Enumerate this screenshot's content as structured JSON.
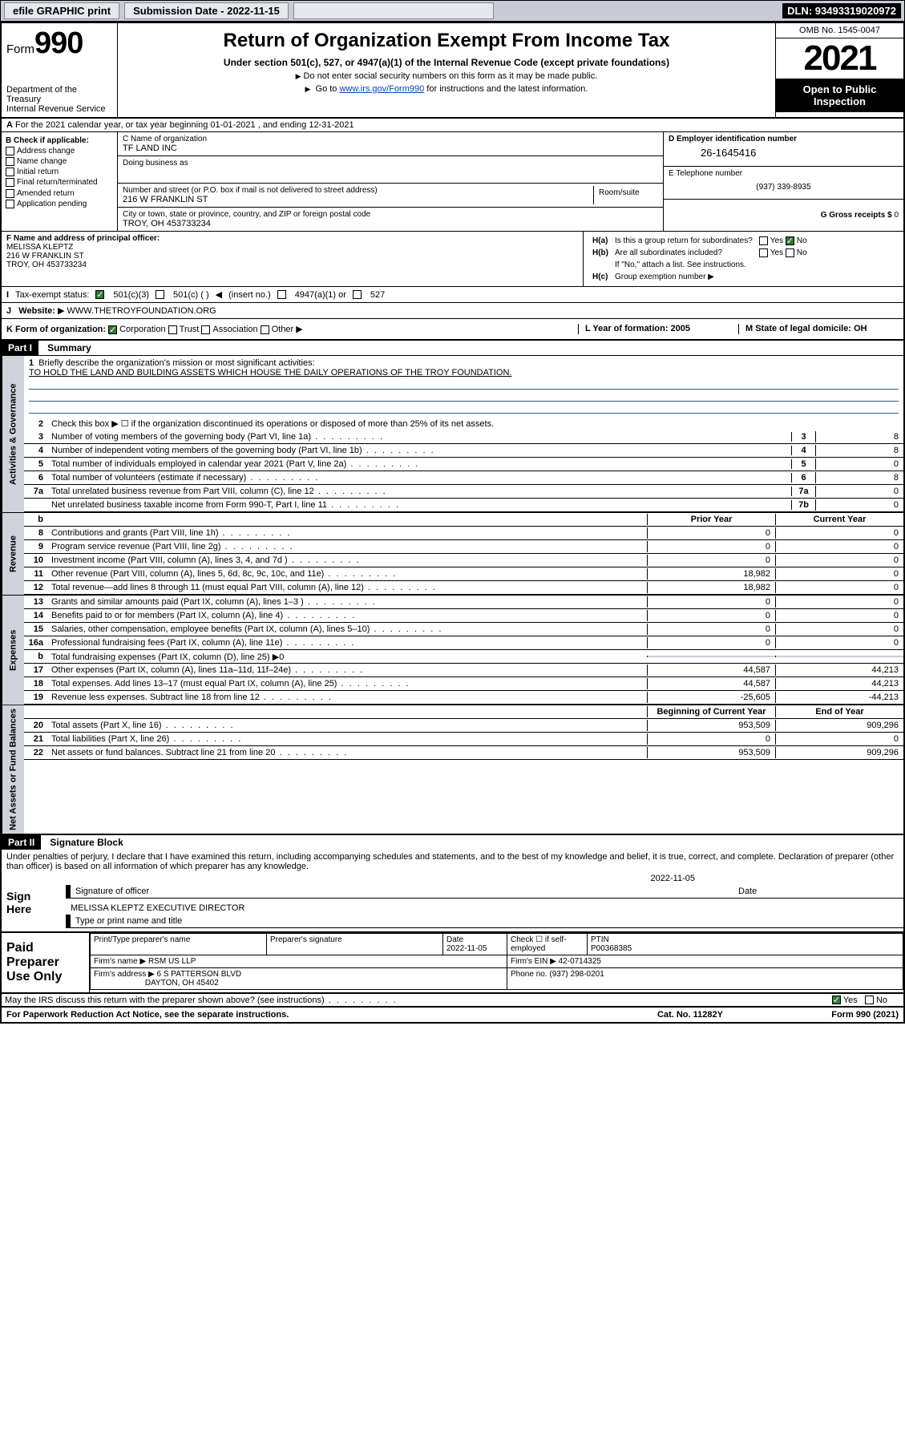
{
  "toolbar": {
    "efile": "efile GRAPHIC print",
    "subdate_lbl": "Submission Date - 2022-11-15",
    "dln": "DLN: 93493319020972"
  },
  "header": {
    "form": "Form",
    "num": "990",
    "dept": "Department of the Treasury",
    "irs": "Internal Revenue Service",
    "title": "Return of Organization Exempt From Income Tax",
    "sub": "Under section 501(c), 527, or 4947(a)(1) of the Internal Revenue Code (except private foundations)",
    "note1": "Do not enter social security numbers on this form as it may be made public.",
    "note2_pre": "Go to ",
    "note2_link": "www.irs.gov/Form990",
    "note2_post": " for instructions and the latest information.",
    "omb": "OMB No. 1545-0047",
    "year": "2021",
    "open": "Open to Public Inspection"
  },
  "A": {
    "txt": "For the 2021 calendar year, or tax year beginning 01-01-2021   , and ending 12-31-2021"
  },
  "B": {
    "hdr": "B Check if applicable:",
    "items": [
      "Address change",
      "Name change",
      "Initial return",
      "Final return/terminated",
      "Amended return",
      "Application pending"
    ]
  },
  "C": {
    "name_lbl": "C Name of organization",
    "name": "TF LAND INC",
    "dba_lbl": "Doing business as",
    "dba": "",
    "addr_lbl": "Number and street (or P.O. box if mail is not delivered to street address)",
    "addr": "216 W FRANKLIN ST",
    "room_lbl": "Room/suite",
    "city_lbl": "City or town, state or province, country, and ZIP or foreign postal code",
    "city": "TROY, OH  453733234"
  },
  "D": {
    "lbl": "D Employer identification number",
    "ein": "26-1645416",
    "tel_lbl": "E Telephone number",
    "tel": "(937) 339-8935",
    "gross_lbl": "G Gross receipts $",
    "gross": "0"
  },
  "F": {
    "lbl": "F  Name and address of principal officer:",
    "name": "MELISSA KLEPTZ",
    "addr1": "216 W FRANKLIN ST",
    "addr2": "TROY, OH  453733234"
  },
  "H": {
    "a": "Is this a group return for subordinates?",
    "b": "Are all subordinates included?",
    "bnote": "If \"No,\" attach a list. See instructions.",
    "c": "Group exemption number",
    "yes": "Yes",
    "no": "No"
  },
  "I": {
    "lbl": "Tax-exempt status:",
    "o1": "501(c)(3)",
    "o2": "501(c) (    )",
    "o2b": "(insert no.)",
    "o3": "4947(a)(1) or",
    "o4": "527"
  },
  "J": {
    "lbl": "Website:",
    "val": "WWW.THETROYFOUNDATION.ORG"
  },
  "K": {
    "lbl": "K Form of organization:",
    "o1": "Corporation",
    "o2": "Trust",
    "o3": "Association",
    "o4": "Other",
    "L": "L Year of formation: 2005",
    "M": "M State of legal domicile: OH"
  },
  "part1": {
    "hdr": "Part I",
    "title": "Summary",
    "l1_lbl": "Briefly describe the organization's mission or most significant activities:",
    "l1_val": "TO HOLD THE LAND AND BUILDING ASSETS WHICH HOUSE THE DAILY OPERATIONS OF THE TROY FOUNDATION.",
    "l2": "Check this box ▶ ☐  if the organization discontinued its operations or disposed of more than 25% of its net assets.",
    "gov": "Activities & Governance",
    "rev": "Revenue",
    "exp": "Expenses",
    "net": "Net Assets or Fund Balances",
    "lines_gov": [
      {
        "n": "3",
        "t": "Number of voting members of the governing body (Part VI, line 1a)",
        "c": "3",
        "v": "8"
      },
      {
        "n": "4",
        "t": "Number of independent voting members of the governing body (Part VI, line 1b)",
        "c": "4",
        "v": "8"
      },
      {
        "n": "5",
        "t": "Total number of individuals employed in calendar year 2021 (Part V, line 2a)",
        "c": "5",
        "v": "0"
      },
      {
        "n": "6",
        "t": "Total number of volunteers (estimate if necessary)",
        "c": "6",
        "v": "8"
      },
      {
        "n": "7a",
        "t": "Total unrelated business revenue from Part VIII, column (C), line 12",
        "c": "7a",
        "v": "0"
      },
      {
        "n": "",
        "t": "Net unrelated business taxable income from Form 990-T, Part I, line 11",
        "c": "7b",
        "v": "0"
      }
    ],
    "col_prior": "Prior Year",
    "col_curr": "Current Year",
    "lines_rev": [
      {
        "n": "8",
        "t": "Contributions and grants (Part VIII, line 1h)",
        "p": "0",
        "c": "0"
      },
      {
        "n": "9",
        "t": "Program service revenue (Part VIII, line 2g)",
        "p": "0",
        "c": "0"
      },
      {
        "n": "10",
        "t": "Investment income (Part VIII, column (A), lines 3, 4, and 7d )",
        "p": "0",
        "c": "0"
      },
      {
        "n": "11",
        "t": "Other revenue (Part VIII, column (A), lines 5, 6d, 8c, 9c, 10c, and 11e)",
        "p": "18,982",
        "c": "0"
      },
      {
        "n": "12",
        "t": "Total revenue—add lines 8 through 11 (must equal Part VIII, column (A), line 12)",
        "p": "18,982",
        "c": "0"
      }
    ],
    "lines_exp": [
      {
        "n": "13",
        "t": "Grants and similar amounts paid (Part IX, column (A), lines 1–3 )",
        "p": "0",
        "c": "0"
      },
      {
        "n": "14",
        "t": "Benefits paid to or for members (Part IX, column (A), line 4)",
        "p": "0",
        "c": "0"
      },
      {
        "n": "15",
        "t": "Salaries, other compensation, employee benefits (Part IX, column (A), lines 5–10)",
        "p": "0",
        "c": "0"
      },
      {
        "n": "16a",
        "t": "Professional fundraising fees (Part IX, column (A), line 11e)",
        "p": "0",
        "c": "0"
      }
    ],
    "l16b": "Total fundraising expenses (Part IX, column (D), line 25) ▶0",
    "lines_exp2": [
      {
        "n": "17",
        "t": "Other expenses (Part IX, column (A), lines 11a–11d, 11f–24e)",
        "p": "44,587",
        "c": "44,213"
      },
      {
        "n": "18",
        "t": "Total expenses. Add lines 13–17 (must equal Part IX, column (A), line 25)",
        "p": "44,587",
        "c": "44,213"
      },
      {
        "n": "19",
        "t": "Revenue less expenses. Subtract line 18 from line 12",
        "p": "-25,605",
        "c": "-44,213"
      }
    ],
    "col_beg": "Beginning of Current Year",
    "col_end": "End of Year",
    "lines_net": [
      {
        "n": "20",
        "t": "Total assets (Part X, line 16)",
        "p": "953,509",
        "c": "909,296"
      },
      {
        "n": "21",
        "t": "Total liabilities (Part X, line 26)",
        "p": "0",
        "c": "0"
      },
      {
        "n": "22",
        "t": "Net assets or fund balances. Subtract line 21 from line 20",
        "p": "953,509",
        "c": "909,296"
      }
    ]
  },
  "part2": {
    "hdr": "Part II",
    "title": "Signature Block",
    "decl": "Under penalties of perjury, I declare that I have examined this return, including accompanying schedules and statements, and to the best of my knowledge and belief, it is true, correct, and complete. Declaration of preparer (other than officer) is based on all information of which preparer has any knowledge.",
    "sign": "Sign Here",
    "sig_lbl": "Signature of officer",
    "date_lbl": "Date",
    "date": "2022-11-05",
    "name": "MELISSA KLEPTZ  EXECUTIVE DIRECTOR",
    "name_lbl": "Type or print name and title",
    "paid": "Paid Preparer Use Only",
    "p_name_lbl": "Print/Type preparer's name",
    "p_sig_lbl": "Preparer's signature",
    "p_date_lbl": "Date",
    "p_date": "2022-11-05",
    "p_check": "Check ☐ if self-employed",
    "p_ptin_lbl": "PTIN",
    "p_ptin": "P00368385",
    "firm_lbl": "Firm's name   ▶",
    "firm": "RSM US LLP",
    "firm_ein_lbl": "Firm's EIN ▶",
    "firm_ein": "42-0714325",
    "firm_addr_lbl": "Firm's address ▶",
    "firm_addr1": "6 S PATTERSON BLVD",
    "firm_addr2": "DAYTON, OH  45402",
    "phone_lbl": "Phone no.",
    "phone": "(937) 298-0201",
    "discuss": "May the IRS discuss this return with the preparer shown above? (see instructions)",
    "yes": "Yes",
    "no": "No"
  },
  "foot": {
    "a": "For Paperwork Reduction Act Notice, see the separate instructions.",
    "b": "Cat. No. 11282Y",
    "c": "Form 990 (2021)"
  }
}
